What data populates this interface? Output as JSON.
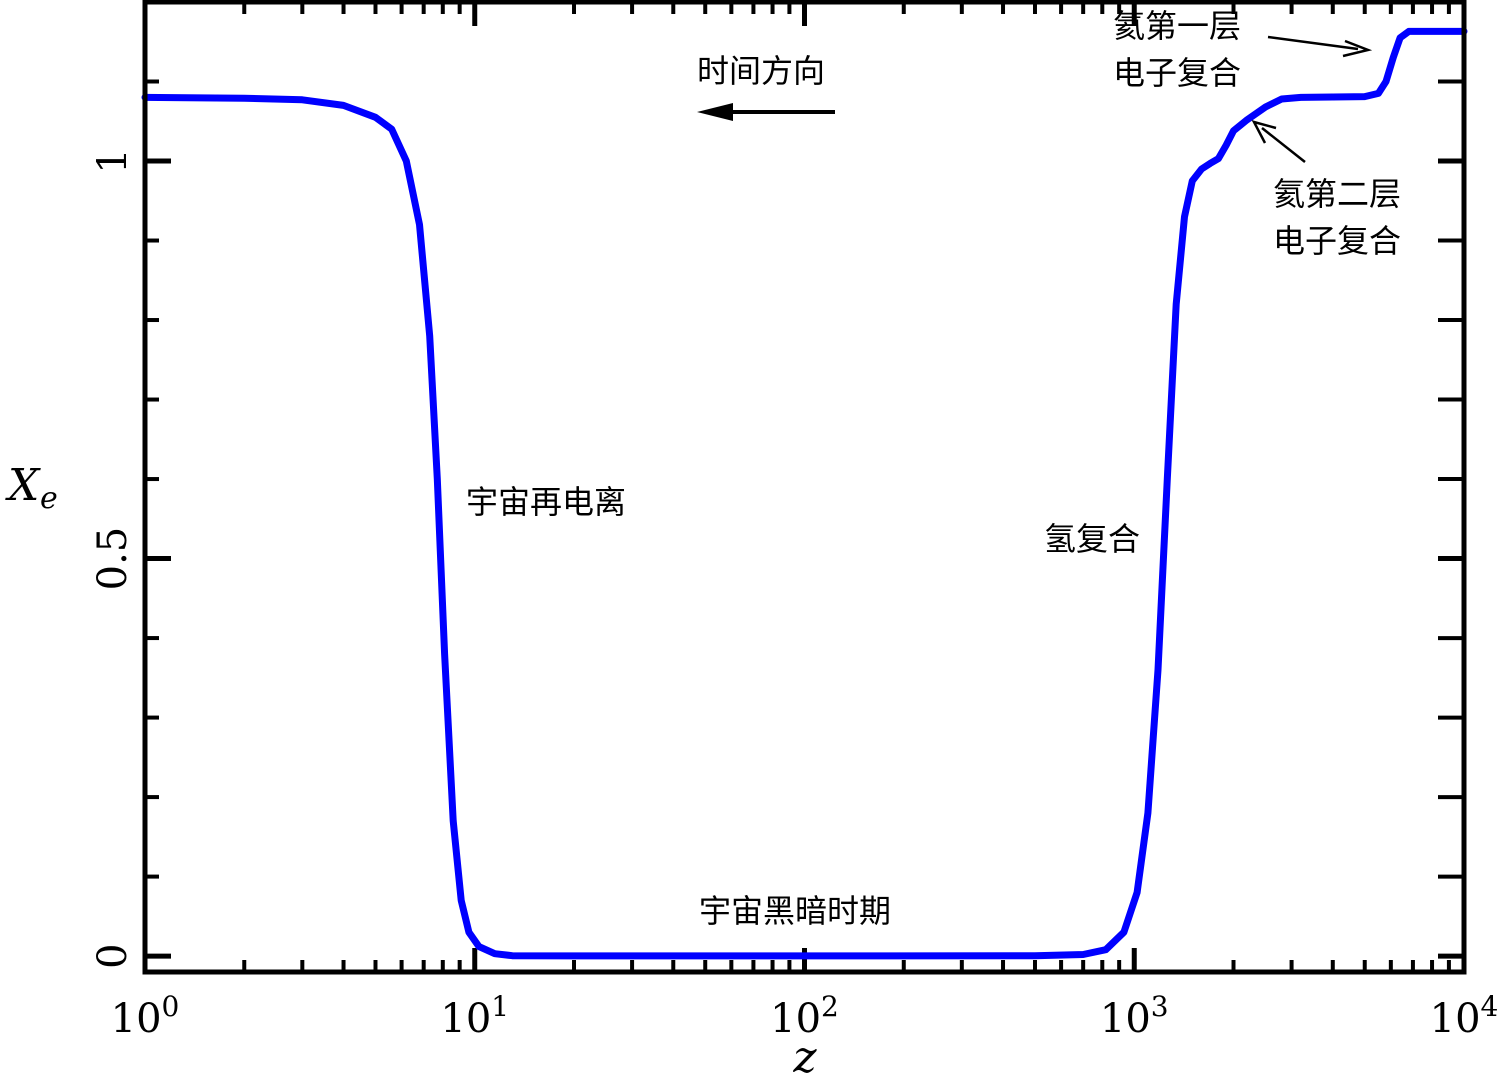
{
  "chart_data": {
    "type": "line",
    "title": "",
    "xlabel": "z",
    "ylabel_main": "X",
    "ylabel_sub": "e",
    "x_scale": "log",
    "xlim": [
      1,
      10000
    ],
    "ylim": [
      -0.02,
      1.2
    ],
    "grid": false,
    "x_ticks": [
      {
        "value": 1,
        "base": "10",
        "exp": "0"
      },
      {
        "value": 10,
        "base": "10",
        "exp": "1"
      },
      {
        "value": 100,
        "base": "10",
        "exp": "2"
      },
      {
        "value": 1000,
        "base": "10",
        "exp": "3"
      },
      {
        "value": 10000,
        "base": "10",
        "exp": "4"
      }
    ],
    "y_ticks": [
      {
        "value": 0,
        "label": "0"
      },
      {
        "value": 0.5,
        "label": "0.5"
      },
      {
        "value": 1,
        "label": "1"
      }
    ],
    "series": [
      {
        "color": "#0000ff",
        "points": [
          [
            1,
            1.08
          ],
          [
            2,
            1.079
          ],
          [
            3,
            1.077
          ],
          [
            4,
            1.07
          ],
          [
            5,
            1.055
          ],
          [
            5.6,
            1.04
          ],
          [
            6.2,
            1.0
          ],
          [
            6.8,
            0.92
          ],
          [
            7.3,
            0.78
          ],
          [
            7.7,
            0.6
          ],
          [
            8.1,
            0.38
          ],
          [
            8.6,
            0.17
          ],
          [
            9.1,
            0.07
          ],
          [
            9.6,
            0.03
          ],
          [
            10.3,
            0.012
          ],
          [
            11.5,
            0.003
          ],
          [
            13,
            0.0005
          ],
          [
            20,
            0.0002
          ],
          [
            100,
            0.0002
          ],
          [
            500,
            0.0004
          ],
          [
            700,
            0.002
          ],
          [
            820,
            0.008
          ],
          [
            930,
            0.03
          ],
          [
            1020,
            0.08
          ],
          [
            1100,
            0.18
          ],
          [
            1180,
            0.36
          ],
          [
            1260,
            0.6
          ],
          [
            1340,
            0.82
          ],
          [
            1420,
            0.93
          ],
          [
            1500,
            0.975
          ],
          [
            1600,
            0.99
          ],
          [
            1700,
            0.997
          ],
          [
            1800,
            1.003
          ],
          [
            1900,
            1.02
          ],
          [
            2000,
            1.038
          ],
          [
            2200,
            1.052
          ],
          [
            2500,
            1.068
          ],
          [
            2800,
            1.078
          ],
          [
            3200,
            1.08
          ],
          [
            5000,
            1.081
          ],
          [
            5500,
            1.085
          ],
          [
            5800,
            1.1
          ],
          [
            6100,
            1.13
          ],
          [
            6400,
            1.155
          ],
          [
            6800,
            1.163
          ],
          [
            10000,
            1.163
          ]
        ]
      }
    ],
    "annotations": [
      {
        "text": "时间方向",
        "x": 60,
        "y": 1.11
      },
      {
        "text": "宇宙再电离",
        "x": 19,
        "y": 0.56
      },
      {
        "text": "宇宙黑暗时期",
        "x": 100,
        "y": 0.05
      },
      {
        "text": "氢复合",
        "x": 550,
        "y": 0.52
      },
      {
        "text": "氦第一层",
        "x": 1900,
        "y": 1.17
      },
      {
        "text": "电子复合",
        "x": 1900,
        "y": 1.115
      },
      {
        "text": "氦第二层",
        "x": 5800,
        "y": 0.96
      },
      {
        "text": "电子复合",
        "x": 5800,
        "y": 0.9
      }
    ]
  }
}
